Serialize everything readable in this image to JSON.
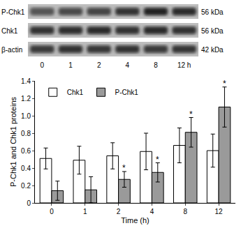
{
  "blot": {
    "rows": [
      {
        "label": "P-Chk1",
        "size": "56 kDa"
      },
      {
        "label": "Chk1",
        "size": "56 kDa"
      },
      {
        "label": "β-actin",
        "size": "42 kDa"
      }
    ],
    "lanes": [
      "0",
      "1",
      "2",
      "4",
      "8",
      "12 h"
    ]
  },
  "chart_data": {
    "type": "bar",
    "x_label": "Time (h)",
    "y_label": "P-Chk1 and Chk1 proteins",
    "categories": [
      "0",
      "1",
      "2",
      "4",
      "8",
      "12"
    ],
    "series": [
      {
        "name": "Chk1",
        "color": "#ffffff",
        "values": [
          0.51,
          0.49,
          0.54,
          0.59,
          0.66,
          0.6
        ],
        "errors": [
          0.12,
          0.16,
          0.15,
          0.21,
          0.2,
          0.19
        ]
      },
      {
        "name": "P-Chk1",
        "color": "#9a9a9a",
        "values": [
          0.14,
          0.15,
          0.27,
          0.35,
          0.81,
          1.1
        ],
        "errors": [
          0.11,
          0.15,
          0.09,
          0.11,
          0.17,
          0.23
        ],
        "significance": [
          null,
          null,
          "*",
          "*",
          "*",
          "*"
        ]
      }
    ],
    "ylim": [
      0,
      1.4
    ],
    "yticks": [
      0,
      0.2,
      0.4,
      0.6,
      0.8,
      {
        "value": 1,
        "label": "1.0"
      },
      1.2,
      1.4
    ],
    "legend": "upper left",
    "grid": false
  }
}
